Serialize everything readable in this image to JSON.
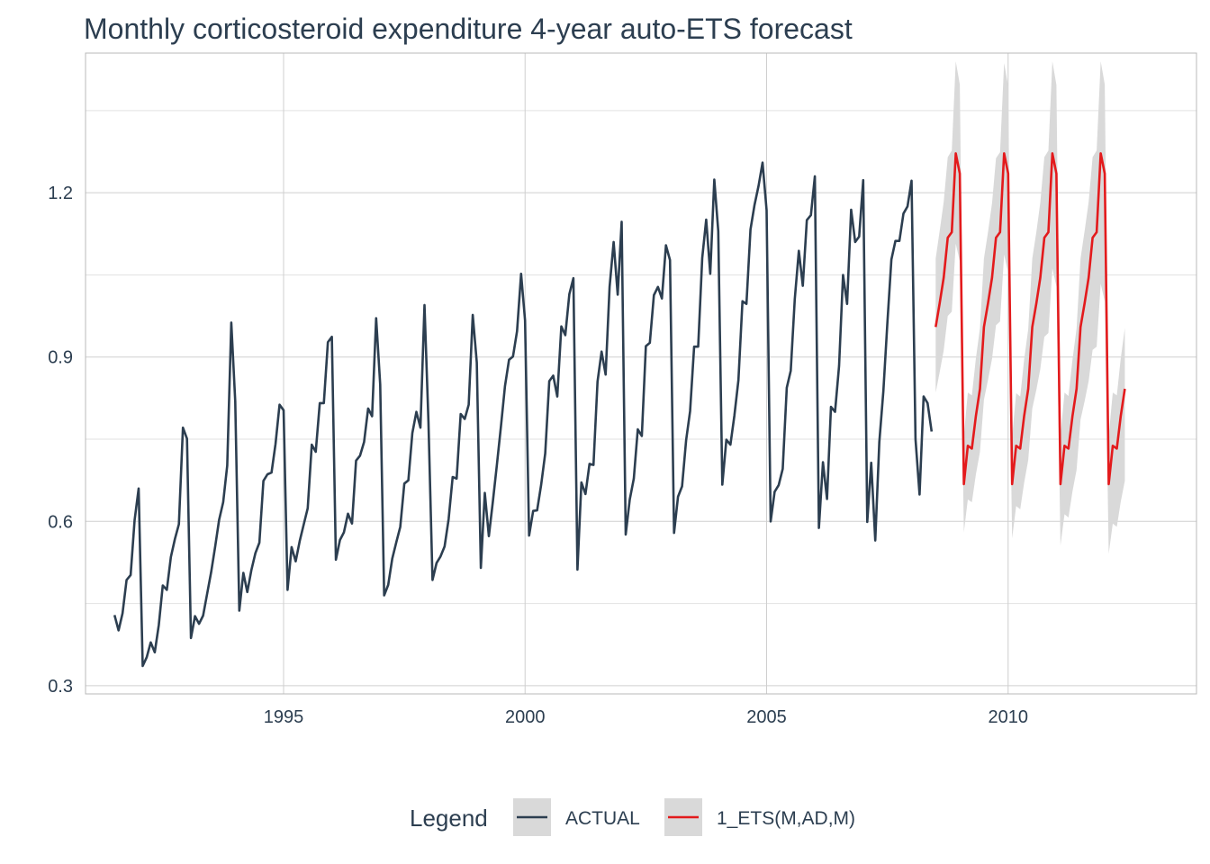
{
  "chart_data": {
    "type": "line",
    "title": "Monthly corticosteroid expenditure 4-year auto-ETS forecast",
    "xlabel": "",
    "ylabel": "",
    "xlim": [
      1990.9,
      2013.9
    ],
    "ylim": [
      0.285,
      1.455
    ],
    "x_ticks": [
      1995,
      2000,
      2005,
      2010
    ],
    "y_ticks": [
      0.3,
      0.6,
      0.9,
      1.2
    ],
    "y_tick_labels": [
      "0.3",
      "0.6",
      "0.9",
      "1.2"
    ],
    "grid": true,
    "legend_position": "bottom",
    "legend_title": "Legend",
    "series": [
      {
        "name": "ACTUAL",
        "color": "#2c3e50",
        "start": 1991.5,
        "step": 0.0833333,
        "values": [
          0.429,
          0.401,
          0.432,
          0.493,
          0.502,
          0.602,
          0.66,
          0.336,
          0.352,
          0.379,
          0.361,
          0.411,
          0.483,
          0.475,
          0.535,
          0.568,
          0.595,
          0.771,
          0.751,
          0.387,
          0.427,
          0.413,
          0.428,
          0.467,
          0.507,
          0.554,
          0.603,
          0.635,
          0.702,
          0.963,
          0.819,
          0.437,
          0.506,
          0.471,
          0.511,
          0.542,
          0.561,
          0.674,
          0.686,
          0.689,
          0.741,
          0.813,
          0.803,
          0.475,
          0.553,
          0.527,
          0.564,
          0.594,
          0.624,
          0.74,
          0.727,
          0.816,
          0.816,
          0.927,
          0.937,
          0.53,
          0.566,
          0.58,
          0.614,
          0.596,
          0.711,
          0.72,
          0.745,
          0.806,
          0.792,
          0.971,
          0.85,
          0.465,
          0.484,
          0.532,
          0.562,
          0.59,
          0.669,
          0.675,
          0.761,
          0.8,
          0.771,
          0.995,
          0.782,
          0.493,
          0.524,
          0.536,
          0.554,
          0.604,
          0.681,
          0.678,
          0.796,
          0.787,
          0.813,
          0.977,
          0.89,
          0.515,
          0.652,
          0.573,
          0.637,
          0.703,
          0.773,
          0.847,
          0.895,
          0.901,
          0.947,
          1.052,
          0.967,
          0.574,
          0.619,
          0.62,
          0.667,
          0.724,
          0.856,
          0.866,
          0.828,
          0.956,
          0.94,
          1.015,
          1.044,
          0.512,
          0.671,
          0.65,
          0.705,
          0.703,
          0.855,
          0.91,
          0.868,
          1.028,
          1.11,
          1.014,
          1.147,
          0.576,
          0.64,
          0.678,
          0.768,
          0.756,
          0.92,
          0.926,
          1.013,
          1.028,
          1.007,
          1.104,
          1.077,
          0.579,
          0.645,
          0.664,
          0.748,
          0.801,
          0.919,
          0.919,
          1.081,
          1.151,
          1.052,
          1.224,
          1.13,
          0.667,
          0.749,
          0.74,
          0.793,
          0.858,
          1.002,
          0.997,
          1.133,
          1.178,
          1.213,
          1.255,
          1.168,
          0.6,
          0.654,
          0.666,
          0.696,
          0.844,
          0.875,
          1.006,
          1.094,
          1.03,
          1.15,
          1.159,
          1.23,
          0.588,
          0.708,
          0.641,
          0.809,
          0.8,
          0.884,
          1.05,
          0.997,
          1.169,
          1.11,
          1.12,
          1.223,
          0.599,
          0.707,
          0.565,
          0.745,
          0.838,
          0.961,
          1.078,
          1.112,
          1.112,
          1.162,
          1.175,
          1.222,
          0.75,
          0.649,
          0.828,
          0.816,
          0.764
        ]
      },
      {
        "name": "1_ETS(M,AD,M)",
        "color": "#e31a1c",
        "start": 2008.5,
        "step": 0.0833333,
        "values": [
          0.955,
          0.998,
          1.045,
          1.118,
          1.128,
          1.272,
          1.235,
          0.668,
          0.738,
          0.733,
          0.793,
          0.842,
          0.955,
          0.998,
          1.045,
          1.118,
          1.128,
          1.272,
          1.235,
          0.668,
          0.738,
          0.733,
          0.793,
          0.842,
          0.955,
          0.998,
          1.045,
          1.118,
          1.128,
          1.272,
          1.235,
          0.668,
          0.738,
          0.733,
          0.793,
          0.842,
          0.955,
          0.998,
          1.045,
          1.118,
          1.128,
          1.272,
          1.235,
          0.668,
          0.738,
          0.733,
          0.793,
          0.842
        ],
        "interval_color": "#d9d9d9",
        "lower": [
          0.835,
          0.872,
          0.912,
          0.975,
          0.983,
          1.107,
          1.075,
          0.58,
          0.64,
          0.635,
          0.686,
          0.727,
          0.822,
          0.858,
          0.897,
          0.958,
          0.965,
          1.087,
          1.054,
          0.569,
          0.628,
          0.622,
          0.671,
          0.712,
          0.806,
          0.84,
          0.878,
          0.937,
          0.944,
          1.062,
          1.029,
          0.556,
          0.613,
          0.607,
          0.655,
          0.694,
          0.786,
          0.819,
          0.856,
          0.913,
          0.919,
          1.034,
          1.002,
          0.541,
          0.596,
          0.59,
          0.636,
          0.674
        ],
        "upper": [
          1.08,
          1.13,
          1.183,
          1.265,
          1.277,
          1.44,
          1.398,
          0.756,
          0.835,
          0.83,
          0.898,
          0.953,
          1.08,
          1.128,
          1.181,
          1.263,
          1.274,
          1.437,
          1.395,
          0.755,
          0.834,
          0.828,
          0.896,
          0.951,
          1.08,
          1.128,
          1.182,
          1.265,
          1.277,
          1.44,
          1.397,
          0.756,
          0.835,
          0.829,
          0.896,
          0.952,
          1.08,
          1.13,
          1.183,
          1.265,
          1.277,
          1.44,
          1.398,
          0.756,
          0.835,
          0.83,
          0.898,
          0.953
        ]
      }
    ]
  }
}
